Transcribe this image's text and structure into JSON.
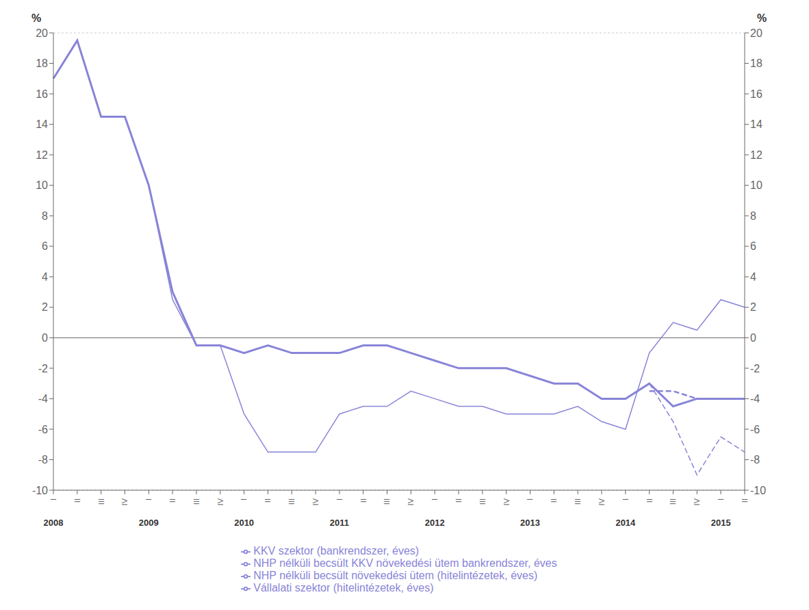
{
  "chart_data": {
    "type": "line",
    "y_label": "%",
    "y2_label": "%",
    "categories": [
      "I",
      "II",
      "III",
      "IV",
      "I",
      "II",
      "III",
      "IV",
      "I",
      "II",
      "III",
      "IV",
      "I",
      "II",
      "III",
      "IV",
      "I",
      "II",
      "III",
      "IV",
      "I",
      "II",
      "III",
      "IV",
      "I",
      "II",
      "III",
      "IV",
      "I",
      "II"
    ],
    "annotations": [
      "2008",
      "2009",
      "2010",
      "2011",
      "2012",
      "2013",
      "2014",
      "2015"
    ],
    "series": [
      {
        "name": "NHP nélküli becsült növekedési ütem (hitelintézetek, éves)",
        "color": "#8884d8",
        "line_style": "dashed",
        "values": [
          null,
          null,
          null,
          null,
          null,
          null,
          null,
          null,
          null,
          null,
          null,
          null,
          null,
          null,
          null,
          null,
          null,
          null,
          null,
          null,
          null,
          null,
          null,
          null,
          null,
          -3.5,
          -3.5,
          -4.0,
          -4.0,
          -4.0
        ]
      },
      {
        "name": "Vállalati szektor (hitelintézetek, éves)",
        "color": "#8884d8",
        "line_style": "solid",
        "values": [
          17.0,
          19.5,
          14.5,
          14.5,
          10.0,
          3.0,
          -0.5,
          -0.5,
          -1.0,
          -0.5,
          -1.0,
          -1.0,
          -1.0,
          -0.5,
          -0.5,
          -1.0,
          -1.5,
          -2.0,
          -2.0,
          -2.0,
          -2.5,
          -3.0,
          -3.0,
          -4.0,
          -4.0,
          -3.0,
          -4.5,
          -4.0,
          -4.0,
          -4.0
        ]
      },
      {
        "name": "KKV szektor (bankrendszer, éves)",
        "color": "#8884d8",
        "line_style": "solid",
        "values": [
          17.0,
          19.5,
          14.5,
          14.5,
          10.0,
          2.5,
          -0.5,
          -0.5,
          -5.0,
          -7.5,
          -7.5,
          -7.5,
          -5.0,
          -4.5,
          -4.5,
          -3.5,
          -4.0,
          -4.5,
          -4.5,
          -5.0,
          -5.0,
          -5.0,
          -4.5,
          -5.5,
          -6.0,
          -1.0,
          1.0,
          0.5,
          2.5,
          2.0
        ]
      },
      {
        "name": "NHP nélküli becsült KKV növekedési ütem bankrendszer, éves",
        "color": "#8884d8",
        "line_style": "dashed",
        "values": [
          null,
          null,
          null,
          null,
          null,
          null,
          null,
          null,
          null,
          null,
          null,
          null,
          null,
          null,
          null,
          null,
          null,
          null,
          null,
          null,
          null,
          null,
          null,
          null,
          null,
          -3.0,
          -5.5,
          -9.0,
          -6.5,
          -7.5
        ]
      }
    ],
    "ylim": [
      -10,
      20
    ],
    "yticks": [
      -10,
      -8,
      -6,
      -4,
      -2,
      0,
      2,
      4,
      6,
      8,
      10,
      12,
      14,
      16,
      18,
      20
    ],
    "y2lim": [
      -10,
      20
    ],
    "y2ticks": [
      -10,
      -8,
      -6,
      -4,
      -2,
      0,
      2,
      4,
      6,
      8,
      10,
      12,
      14,
      16,
      18,
      20
    ],
    "grid": true,
    "legend": "bottom"
  }
}
